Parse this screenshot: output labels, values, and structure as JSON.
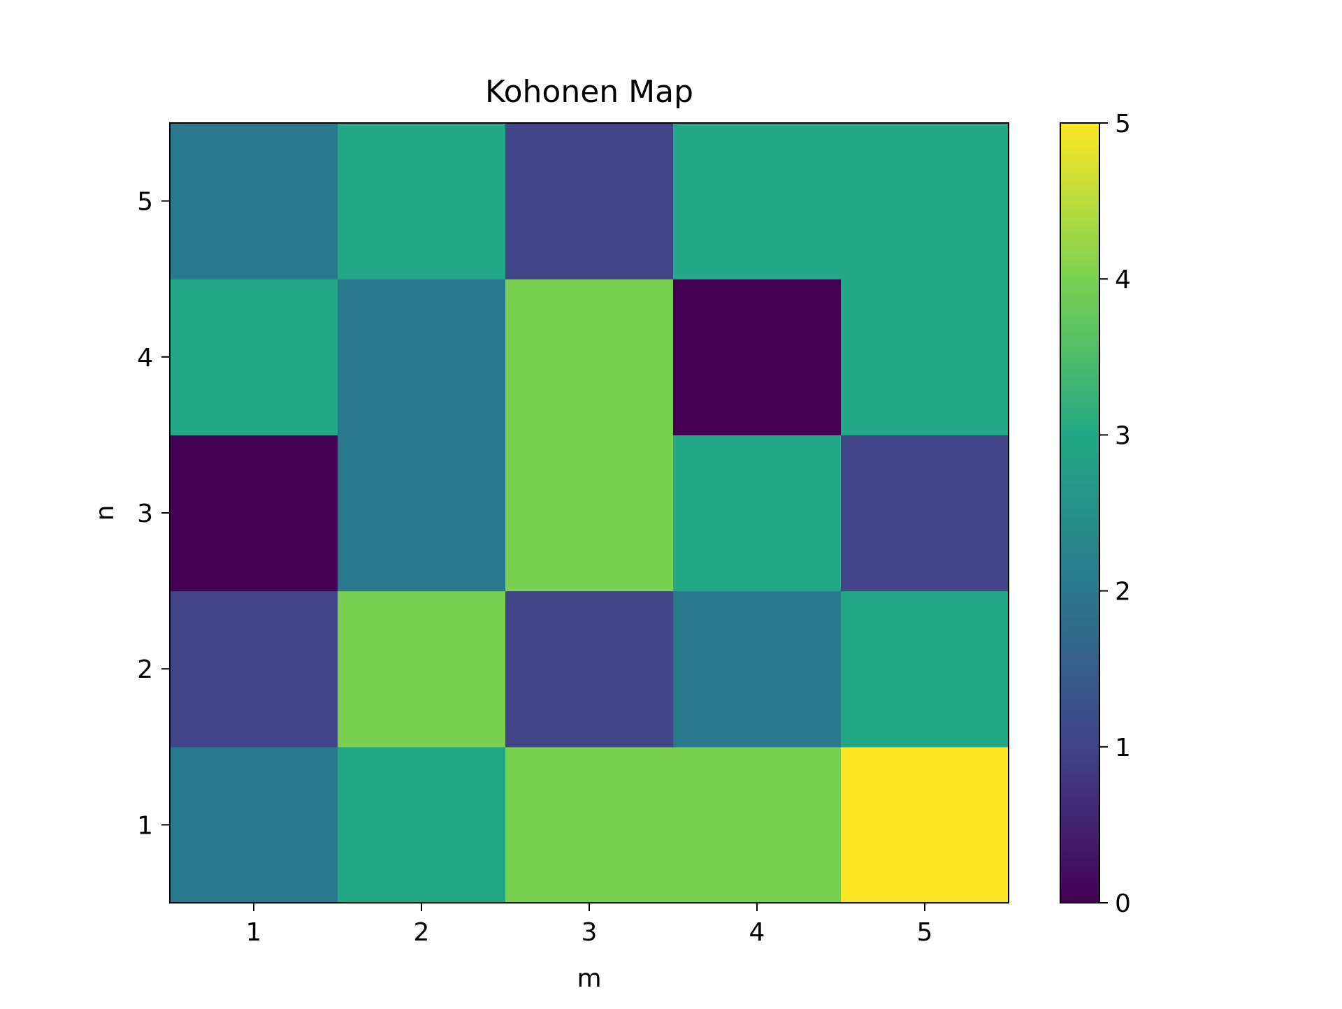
{
  "chart_data": {
    "type": "heatmap",
    "title": "Kohonen Map",
    "xlabel": "m",
    "ylabel": "n",
    "x": [
      1,
      2,
      3,
      4,
      5
    ],
    "y": [
      1,
      2,
      3,
      4,
      5
    ],
    "x_tick_labels": [
      "1",
      "2",
      "3",
      "4",
      "5"
    ],
    "y_tick_labels": [
      "1",
      "2",
      "3",
      "4",
      "5"
    ],
    "xlim": [
      0.5,
      5.5
    ],
    "ylim": [
      0.5,
      5.5
    ],
    "values": [
      [
        2,
        3,
        4,
        4,
        5
      ],
      [
        1,
        4,
        1,
        2,
        3
      ],
      [
        0,
        2,
        4,
        3,
        1
      ],
      [
        3,
        2,
        4,
        0,
        3
      ],
      [
        2,
        3,
        1,
        3,
        3
      ]
    ],
    "colormap": "viridis",
    "colorbar": {
      "range": [
        0,
        5
      ],
      "ticks": [
        0,
        1,
        2,
        3,
        4,
        5
      ],
      "tick_labels": [
        "0",
        "1",
        "2",
        "3",
        "4",
        "5"
      ]
    },
    "grid": false,
    "colors": {
      "0": "#440154",
      "1": "#414487",
      "2": "#2a788e",
      "3": "#22a884",
      "4": "#7ad151",
      "5": "#fde725"
    }
  }
}
